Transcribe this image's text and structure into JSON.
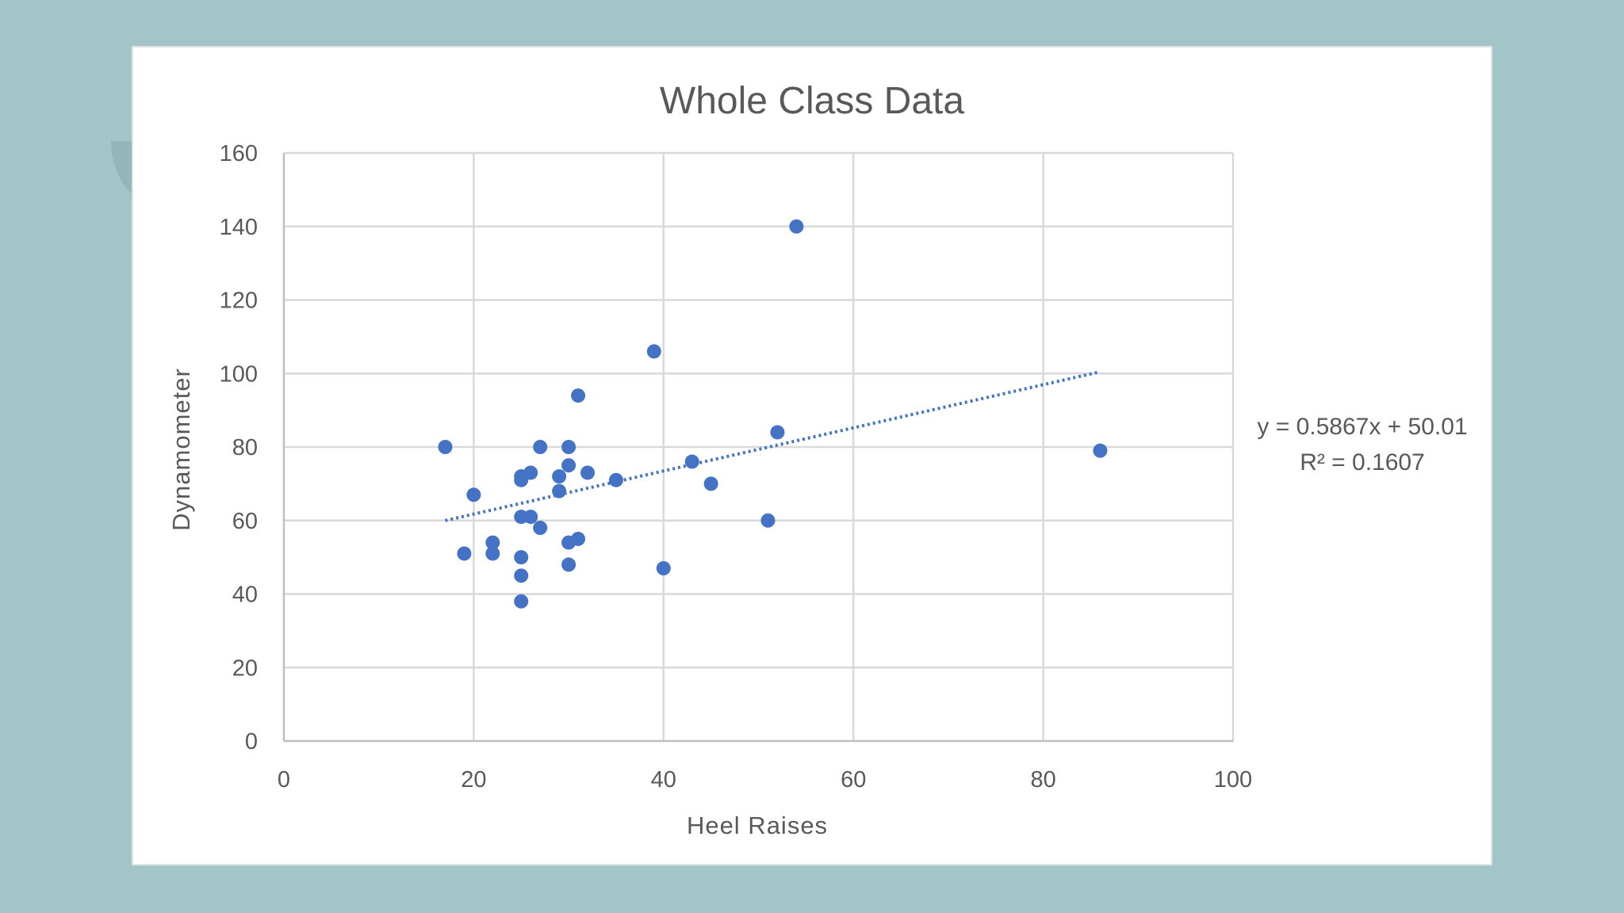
{
  "chart_data": {
    "type": "scatter",
    "title": "Whole Class Data",
    "xlabel": "Heel Raises",
    "ylabel": "Dynamometer",
    "xlim": [
      0,
      100
    ],
    "ylim": [
      0,
      160
    ],
    "xticks": [
      0,
      20,
      40,
      60,
      80,
      100
    ],
    "yticks": [
      0,
      20,
      40,
      60,
      80,
      100,
      120,
      140,
      160
    ],
    "grid": true,
    "series": [
      {
        "color": "#4472c4",
        "points": [
          [
            17,
            80
          ],
          [
            20,
            67
          ],
          [
            19,
            51
          ],
          [
            22,
            54
          ],
          [
            22,
            51
          ],
          [
            25,
            72
          ],
          [
            25,
            71
          ],
          [
            26,
            73
          ],
          [
            25,
            61
          ],
          [
            26,
            61
          ],
          [
            27,
            58
          ],
          [
            25,
            50
          ],
          [
            25,
            45
          ],
          [
            25,
            38
          ],
          [
            27,
            80
          ],
          [
            29,
            72
          ],
          [
            29,
            68
          ],
          [
            30,
            80
          ],
          [
            30,
            75
          ],
          [
            30,
            54
          ],
          [
            31,
            55
          ],
          [
            30,
            48
          ],
          [
            31,
            94
          ],
          [
            32,
            73
          ],
          [
            35,
            71
          ],
          [
            39,
            106
          ],
          [
            40,
            47
          ],
          [
            43,
            76
          ],
          [
            45,
            70
          ],
          [
            51,
            60
          ],
          [
            52,
            84
          ],
          [
            54,
            140
          ],
          [
            86,
            79
          ]
        ]
      }
    ],
    "trendline": {
      "type": "linear",
      "slope": 0.5867,
      "intercept": 50.01,
      "x_range": [
        17,
        86
      ],
      "color": "#4472c4",
      "style": "dotted",
      "equation": "y = 0.5867x + 50.01",
      "r_squared": "R² = 0.1607"
    }
  }
}
